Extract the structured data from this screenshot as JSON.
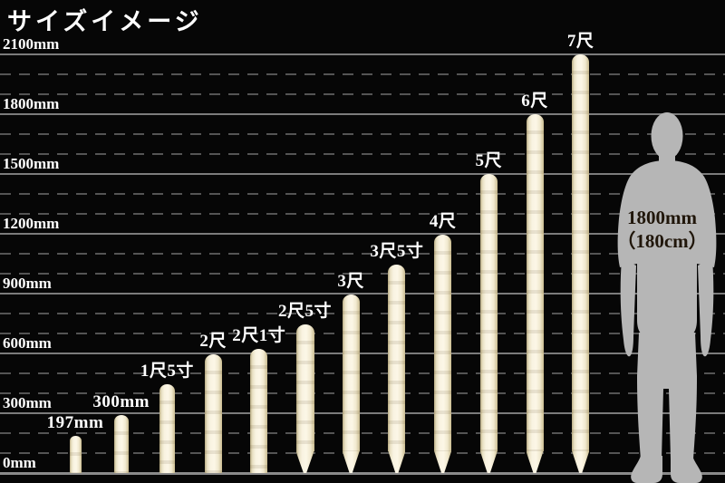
{
  "title": "サイズイメージ",
  "chart_data": {
    "type": "bar",
    "title": "サイズイメージ",
    "unit": "mm",
    "ylim": [
      0,
      2100
    ],
    "grid_major_step_mm": 300,
    "grid_minor_step_mm": 100,
    "legend": "none",
    "yticks": [
      {
        "label": "0mm",
        "mm": 0
      },
      {
        "label": "300mm",
        "mm": 300
      },
      {
        "label": "600mm",
        "mm": 600
      },
      {
        "label": "900mm",
        "mm": 900
      },
      {
        "label": "1200mm",
        "mm": 1200
      },
      {
        "label": "1500mm",
        "mm": 1500
      },
      {
        "label": "1800mm",
        "mm": 1800
      },
      {
        "label": "2100mm",
        "mm": 2100
      }
    ],
    "categories": [
      "197mm",
      "300mm",
      "1尺5寸",
      "2尺",
      "2尺1寸",
      "2尺5寸",
      "3尺",
      "3尺5寸",
      "4尺",
      "5尺",
      "6尺",
      "7尺"
    ],
    "values_mm": [
      197,
      300,
      455,
      606,
      636,
      758,
      909,
      1061,
      1212,
      1515,
      1818,
      2121
    ],
    "bars": [
      {
        "label": "197mm",
        "mm": 197,
        "tip": "flat",
        "width": 13
      },
      {
        "label": "300mm",
        "mm": 300,
        "tip": "flat",
        "width": 16
      },
      {
        "label": "1尺5寸",
        "mm": 455,
        "tip": "flat",
        "width": 17
      },
      {
        "label": "2尺",
        "mm": 606,
        "tip": "flat",
        "width": 19
      },
      {
        "label": "2尺1寸",
        "mm": 636,
        "tip": "flat",
        "width": 19
      },
      {
        "label": "2尺5寸",
        "mm": 758,
        "tip": "pointed",
        "width": 20
      },
      {
        "label": "3尺",
        "mm": 909,
        "tip": "pointed",
        "width": 19
      },
      {
        "label": "3尺5寸",
        "mm": 1061,
        "tip": "pointed",
        "width": 19
      },
      {
        "label": "4尺",
        "mm": 1212,
        "tip": "pointed",
        "width": 19
      },
      {
        "label": "5尺",
        "mm": 1515,
        "tip": "pointed",
        "width": 19
      },
      {
        "label": "6尺",
        "mm": 1818,
        "tip": "pointed",
        "width": 19
      },
      {
        "label": "7尺",
        "mm": 2121,
        "tip": "pointed",
        "width": 19
      }
    ],
    "annotation": {
      "label": "1800mm（180cm）",
      "mm": 1800,
      "attached_to": "human-silhouette"
    }
  },
  "figure": {
    "line1": "1800mm",
    "line2": "（180cm）"
  },
  "colors": {
    "background": "#060606",
    "grid_major": "#7b7b7b",
    "grid_minor": "#545454",
    "bar_light": "#fcf7e7",
    "bar_edge": "#b9ac83",
    "label_text": "#ffffff",
    "silhouette": "#b6b6b6",
    "figure_text": "#20160a"
  }
}
